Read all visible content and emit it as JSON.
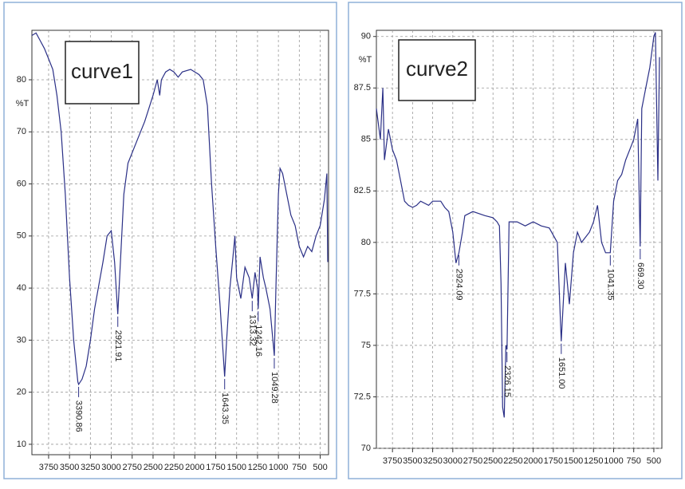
{
  "chart_data": [
    {
      "type": "line",
      "title": "curve1",
      "ylabel": "%T",
      "x": [
        3950,
        3900,
        3850,
        3800,
        3750,
        3700,
        3650,
        3600,
        3550,
        3500,
        3450,
        3400,
        3390.86,
        3350,
        3300,
        3250,
        3200,
        3100,
        3050,
        3000,
        2960,
        2921.91,
        2900,
        2850,
        2800,
        2700,
        2600,
        2500,
        2450,
        2420,
        2400,
        2350,
        2300,
        2250,
        2200,
        2150,
        2050,
        1950,
        1900,
        1850,
        1800,
        1750,
        1700,
        1643.35,
        1620,
        1580,
        1550,
        1520,
        1500,
        1450,
        1400,
        1350,
        1313.32,
        1280,
        1250,
        1242.16,
        1220,
        1180,
        1150,
        1100,
        1049.28,
        1030,
        1000,
        980,
        950,
        900,
        850,
        800,
        750,
        700,
        650,
        600,
        550,
        500,
        450,
        420,
        410
      ],
      "series": [
        {
          "color": "#2a2f86",
          "values": [
            88.5,
            89,
            87.5,
            86,
            84,
            82,
            77,
            70,
            58,
            42,
            30,
            22,
            21.5,
            22.5,
            25,
            30,
            36,
            45,
            50,
            51,
            45,
            35,
            42,
            58,
            64,
            68,
            72,
            77,
            80,
            77,
            80,
            81.5,
            82,
            81.5,
            80.5,
            81.5,
            82,
            81,
            80,
            75,
            60,
            48,
            37,
            23,
            30,
            40,
            45,
            50,
            42,
            38,
            44,
            42,
            38,
            43,
            40,
            36,
            46,
            42,
            40,
            36,
            27,
            40,
            58,
            63,
            62,
            58,
            54,
            52,
            48,
            46,
            48,
            47,
            50,
            52,
            57,
            62,
            45
          ]
        }
      ],
      "xlim": [
        3950,
        400
      ],
      "ylim": [
        8,
        89.5
      ],
      "xticks": [
        3750,
        3500,
        3250,
        3000,
        2750,
        2500,
        2250,
        2000,
        1750,
        1500,
        1250,
        1000,
        750,
        500
      ],
      "yticks": [
        10,
        20,
        30,
        40,
        50,
        60,
        70,
        80
      ],
      "grid": true,
      "peaks": [
        {
          "value": 3390.86,
          "label": "3390.86",
          "y": 21.5
        },
        {
          "value": 2921.91,
          "label": "2921.91",
          "y": 35
        },
        {
          "value": 1643.35,
          "label": "1643.35",
          "y": 23
        },
        {
          "value": 1313.32,
          "label": "1313.32",
          "y": 38
        },
        {
          "value": 1242.16,
          "label": "1242.16",
          "y": 36
        },
        {
          "value": 1049.28,
          "label": "1049.28",
          "y": 27
        }
      ]
    },
    {
      "type": "line",
      "title": "curve2",
      "ylabel": "%T",
      "x": [
        3950,
        3900,
        3870,
        3850,
        3800,
        3750,
        3700,
        3650,
        3600,
        3550,
        3500,
        3450,
        3400,
        3300,
        3250,
        3150,
        3100,
        3050,
        3000,
        2960,
        2924.09,
        2880,
        2850,
        2750,
        2600,
        2500,
        2450,
        2420,
        2400,
        2380,
        2360,
        2340,
        2326.15,
        2300,
        2200,
        2100,
        2000,
        1900,
        1800,
        1700,
        1651,
        1600,
        1550,
        1500,
        1450,
        1400,
        1300,
        1250,
        1200,
        1150,
        1100,
        1041.35,
        1000,
        950,
        900,
        850,
        800,
        750,
        700,
        669.3,
        650,
        600,
        550,
        500,
        480,
        450,
        430
      ],
      "series": [
        {
          "color": "#2a2f86",
          "values": [
            86.5,
            85,
            87.5,
            84,
            85.5,
            84.5,
            84,
            83,
            82,
            81.8,
            81.7,
            81.8,
            82,
            81.8,
            82,
            82,
            81.7,
            81.5,
            80.5,
            79,
            79.5,
            80.5,
            81.3,
            81.5,
            81.3,
            81.2,
            81,
            80.8,
            78,
            72,
            71.5,
            75,
            74.8,
            81,
            81,
            80.8,
            81,
            80.8,
            80.7,
            80,
            75.2,
            79,
            77,
            79.5,
            80.5,
            80,
            80.5,
            81,
            81.8,
            80,
            79.5,
            79.5,
            82,
            83,
            83.3,
            84,
            84.5,
            85,
            86,
            79.8,
            86.5,
            87.5,
            88.5,
            90,
            90.2,
            83,
            89
          ]
        }
      ],
      "xlim": [
        3950,
        400
      ],
      "ylim": [
        70,
        90.3
      ],
      "xticks": [
        3750,
        3500,
        3250,
        3000,
        2750,
        2500,
        2250,
        2000,
        1750,
        1500,
        1250,
        1000,
        750,
        500
      ],
      "yticks": [
        70,
        72.5,
        75,
        77.5,
        80,
        82.5,
        85,
        87.5,
        90
      ],
      "grid": true,
      "peaks": [
        {
          "value": 2924.09,
          "label": "2924.09",
          "y": 79.5
        },
        {
          "value": 2326.15,
          "label": "2326.15",
          "y": 74.8
        },
        {
          "value": 1651,
          "label": "1651.00",
          "y": 75.2
        },
        {
          "value": 1041.35,
          "label": "1041.35",
          "y": 79.5
        },
        {
          "value": 669.3,
          "label": "669.30",
          "y": 79.8
        }
      ]
    }
  ]
}
